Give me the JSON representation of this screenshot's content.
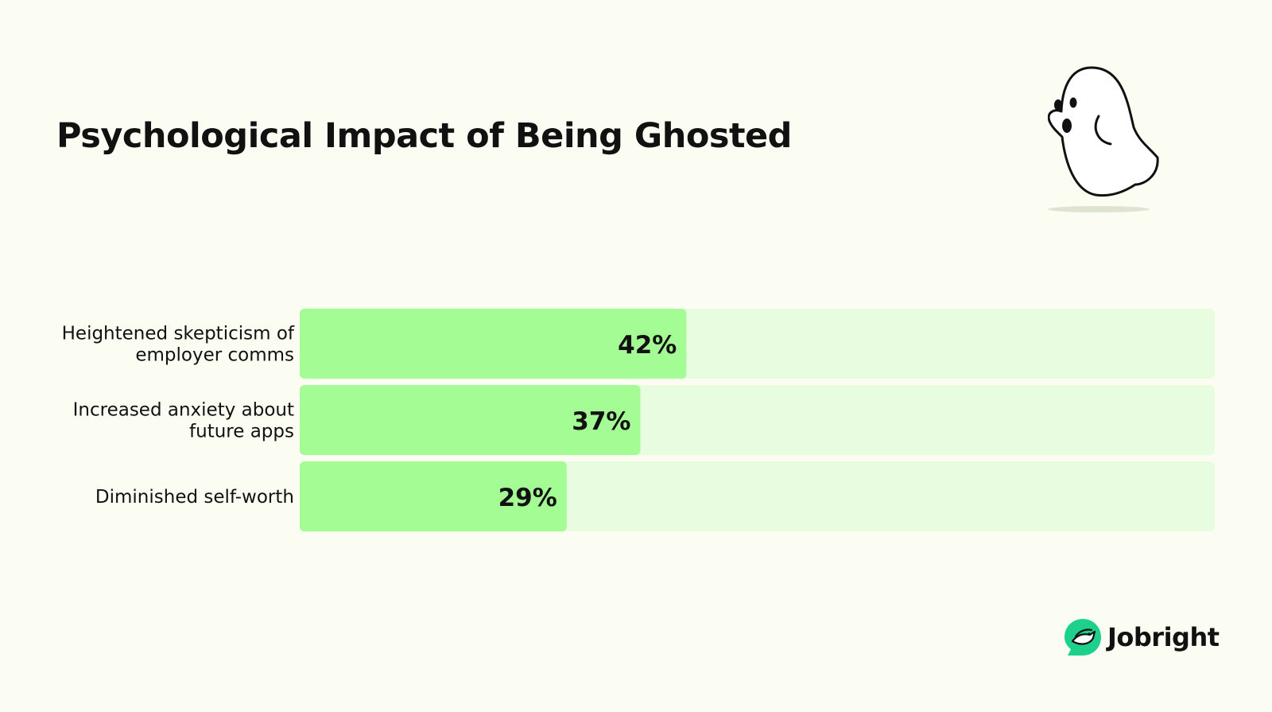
{
  "title": "Psychological Impact of Being Ghosted",
  "brand": {
    "name": "Jobright",
    "accent": "#1dd18c"
  },
  "colors": {
    "background": "#fbfdf3",
    "bar_fill": "#a4fc94",
    "bar_track": "#e8fde0",
    "text": "#111111"
  },
  "icons": {
    "illustration": "ghost-illustration",
    "logo": "jobright-bird-logo"
  },
  "chart_data": {
    "type": "bar",
    "orientation": "horizontal",
    "title": "Psychological Impact of Being Ghosted",
    "categories": [
      [
        "Heightened skepticism of",
        "employer comms"
      ],
      [
        "Increased anxiety about",
        "future apps"
      ],
      [
        "Diminished self-worth"
      ]
    ],
    "values": [
      42,
      37,
      29
    ],
    "value_labels": [
      "42%",
      "37%",
      "29%"
    ],
    "xlim": [
      0,
      100
    ],
    "unit": "%",
    "grid": false,
    "legend": "none"
  }
}
